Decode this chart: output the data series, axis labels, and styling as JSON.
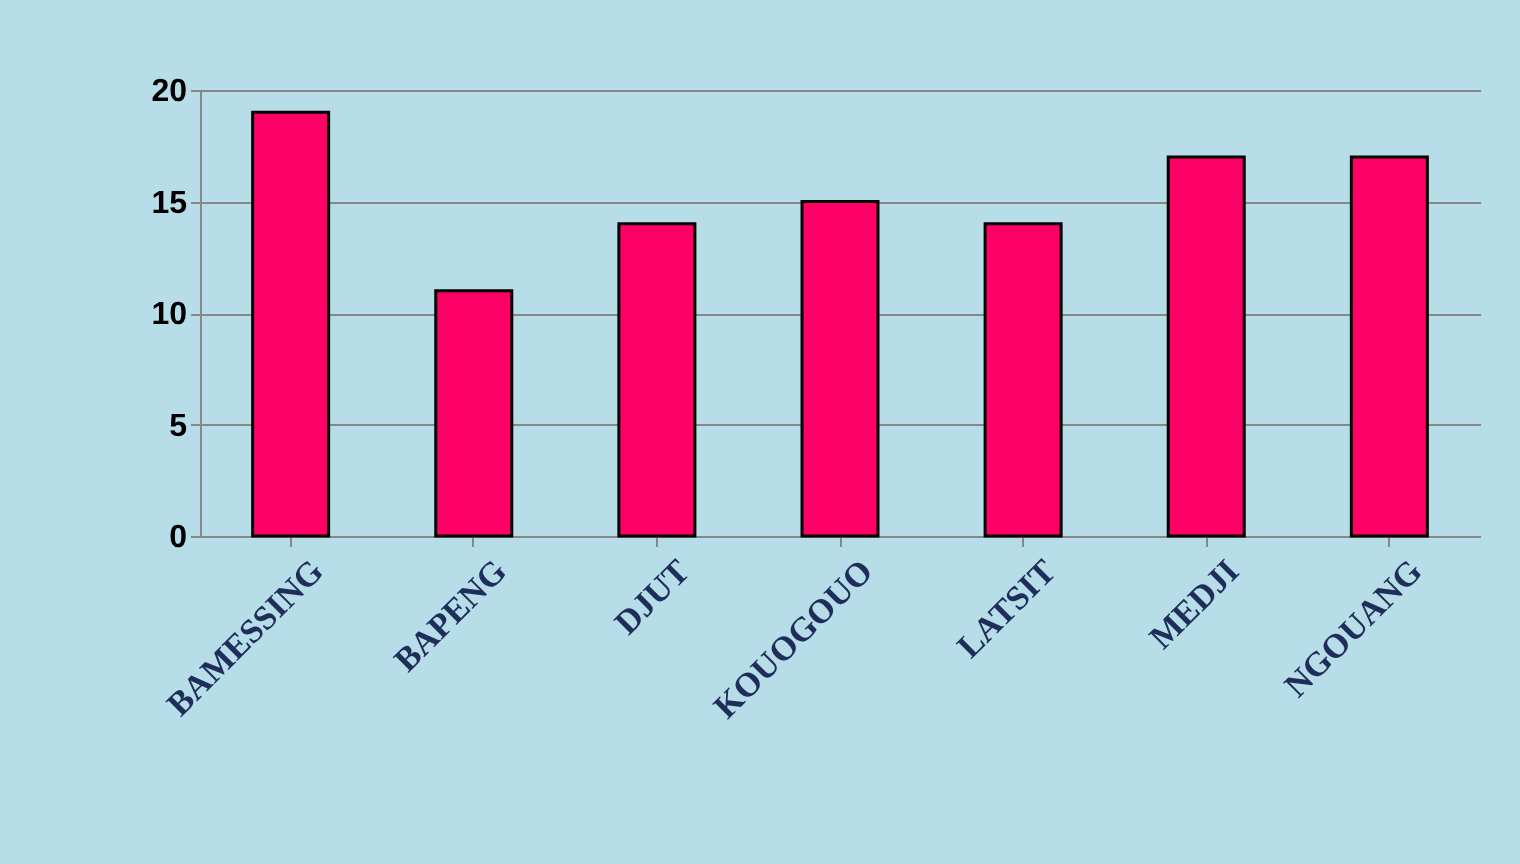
{
  "chart_data": {
    "type": "bar",
    "categories": [
      "BAMESSING",
      "BAPENG",
      "DJUT",
      "KOUOGOUO",
      "LATSIT",
      "MEDJI",
      "NGOUANG"
    ],
    "values": [
      19,
      11,
      14,
      15,
      14,
      17,
      17
    ],
    "color": "#ff0066",
    "ylim": [
      0,
      20
    ],
    "yticks": [
      0,
      5,
      10,
      15,
      20
    ],
    "grid": "y"
  }
}
